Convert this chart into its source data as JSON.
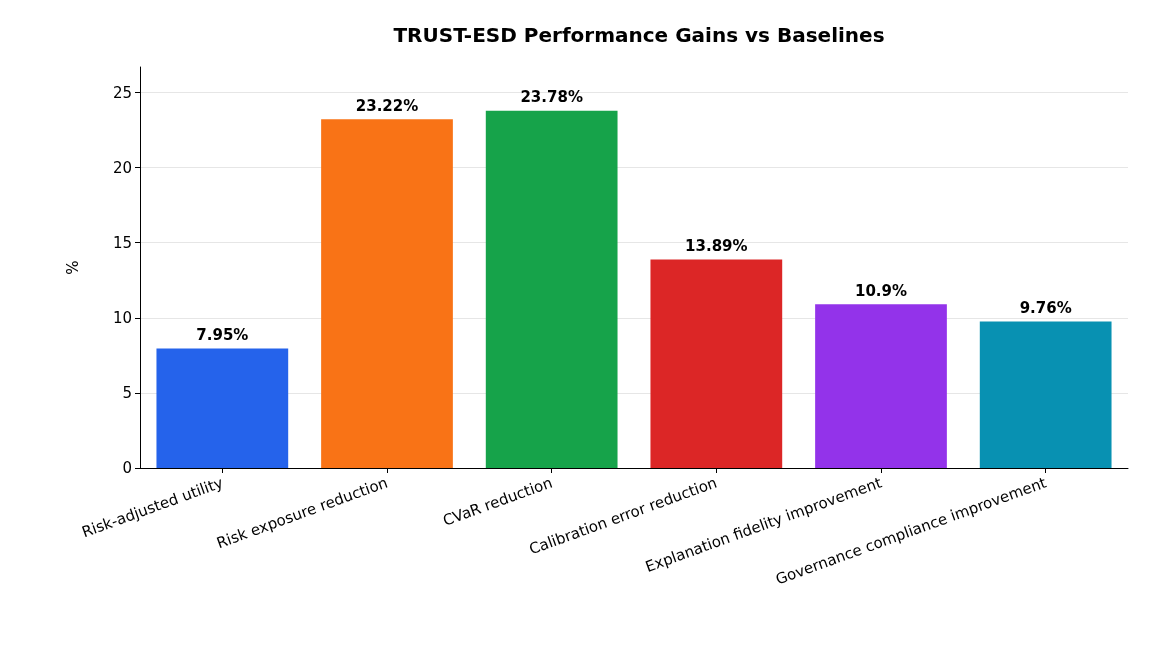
{
  "chart_data": {
    "type": "bar",
    "title": "TRUST-ESD Performance Gains vs Baselines",
    "ylabel": "%",
    "categories": [
      "Risk-adjusted utility",
      "Risk exposure reduction",
      "CVaR reduction",
      "Calibration error reduction",
      "Explanation fidelity improvement",
      "Governance compliance improvement"
    ],
    "values": [
      7.95,
      23.22,
      23.78,
      13.89,
      10.9,
      9.76
    ],
    "value_labels": [
      "7.95%",
      "23.22%",
      "23.78%",
      "13.89%",
      "10.9%",
      "9.76%"
    ],
    "colors": [
      "#2563eb",
      "#f97316",
      "#16a34a",
      "#dc2626",
      "#9333ea",
      "#0891b2"
    ],
    "ylim": [
      0,
      26.7
    ],
    "yticks": [
      0,
      5,
      10,
      15,
      20,
      25
    ],
    "grid": "y"
  }
}
